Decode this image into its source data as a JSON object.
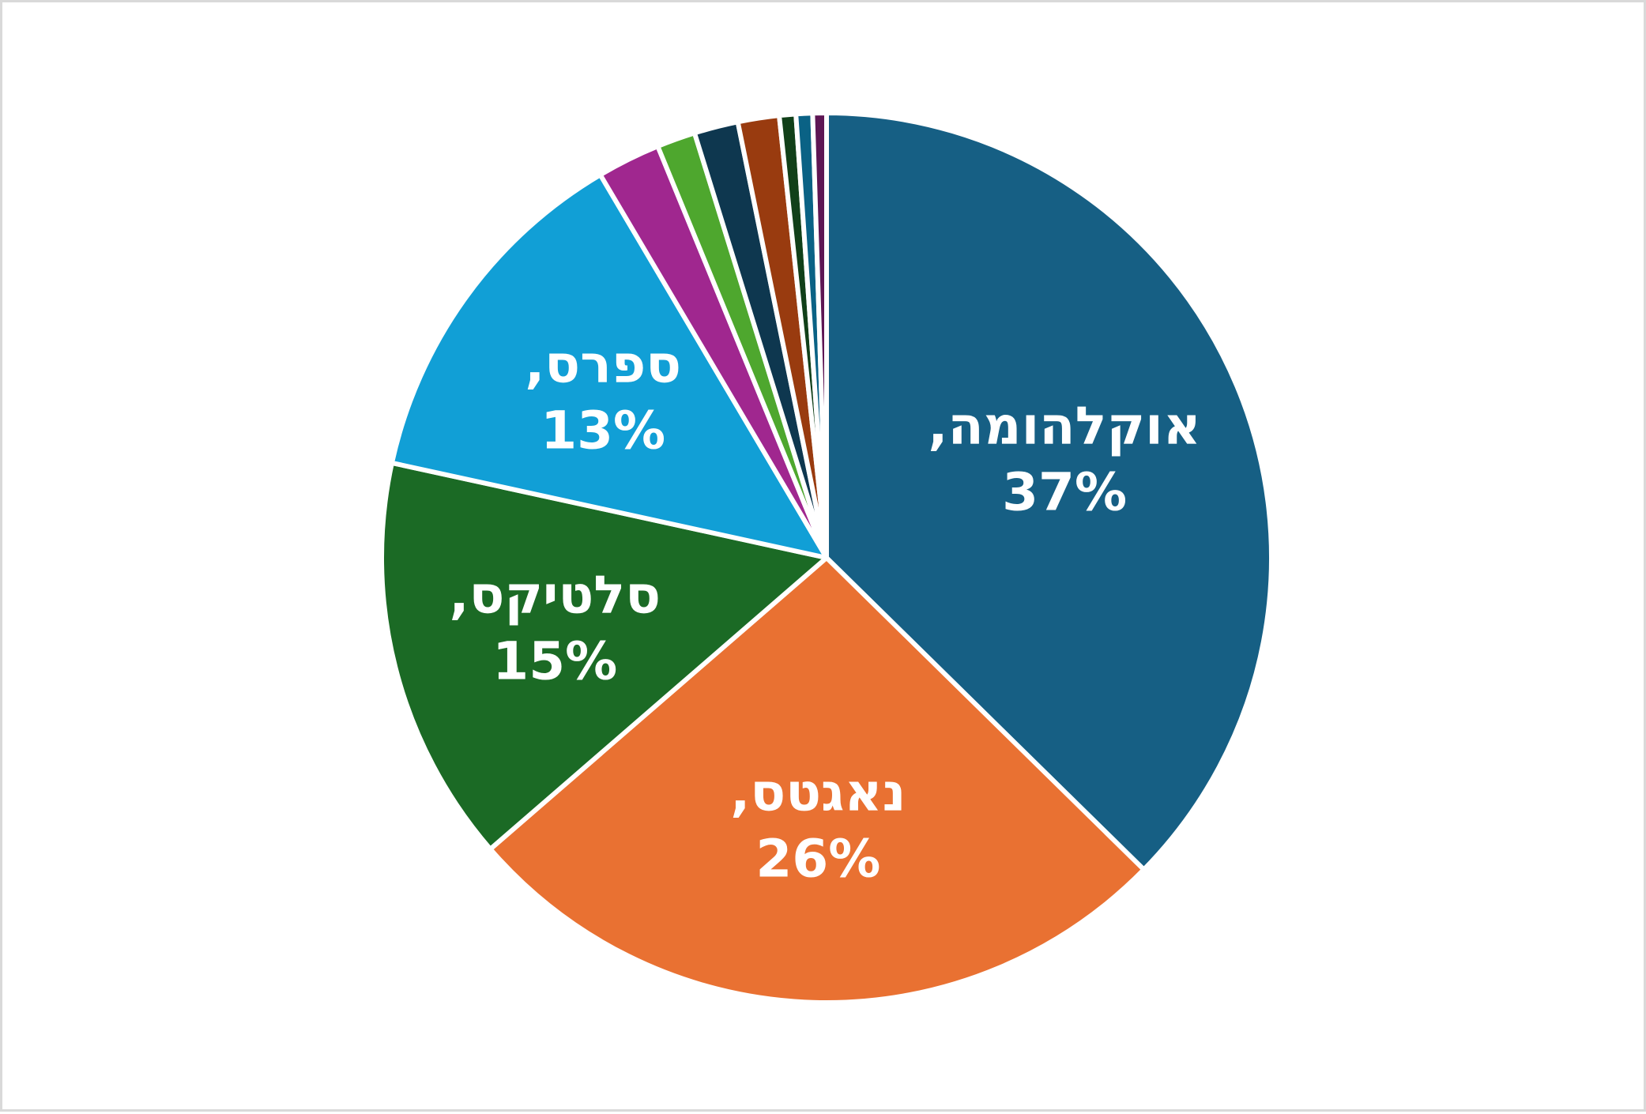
{
  "chart_data": {
    "type": "pie",
    "title": "",
    "legend": "none",
    "start_angle_deg": 0,
    "direction": "clockwise",
    "slices": [
      {
        "label": "אוקלהומה",
        "value": 37.4,
        "percent_label": "37%",
        "color": "#165f84",
        "show_label": true
      },
      {
        "label": "נאגטס",
        "value": 26.3,
        "percent_label": "26%",
        "color": "#e97132",
        "show_label": true
      },
      {
        "label": "סלטיקס",
        "value": 14.8,
        "percent_label": "15%",
        "color": "#1b6a25",
        "show_label": true
      },
      {
        "label": "ספרס",
        "value": 13.1,
        "percent_label": "13%",
        "color": "#119fd6",
        "show_label": true
      },
      {
        "label": "",
        "value": 2.3,
        "percent_label": "",
        "color": "#a0278f",
        "show_label": false
      },
      {
        "label": "",
        "value": 1.4,
        "percent_label": "",
        "color": "#4ea72e",
        "show_label": false
      },
      {
        "label": "",
        "value": 1.6,
        "percent_label": "",
        "color": "#0e374f",
        "show_label": false
      },
      {
        "label": "",
        "value": 1.5,
        "percent_label": "",
        "color": "#993b0f",
        "show_label": false
      },
      {
        "label": "",
        "value": 0.6,
        "percent_label": "",
        "color": "#114019",
        "show_label": false
      },
      {
        "label": "",
        "value": 0.6,
        "percent_label": "",
        "color": "#0a6285",
        "show_label": false
      },
      {
        "label": "",
        "value": 0.5,
        "percent_label": "",
        "color": "#5e1654",
        "show_label": false
      }
    ]
  }
}
